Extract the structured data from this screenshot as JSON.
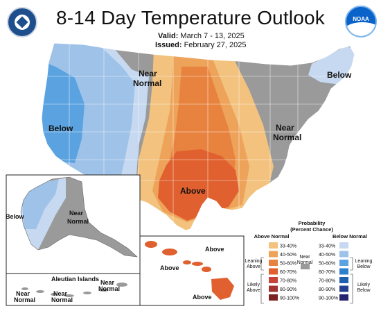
{
  "title": "8-14 Day Temperature Outlook",
  "valid": {
    "label": "Valid:",
    "value": "March 7 - 13, 2025"
  },
  "issued": {
    "label": "Issued:",
    "value": "February 27, 2025"
  },
  "logos": {
    "left": "doc-seal",
    "right": "noaa-logo"
  },
  "colors": {
    "below_33_40": "#c6d9f1",
    "below_40_50": "#9ec2e8",
    "below_50_60": "#5ba3e0",
    "near_normal": "#9a9a9a",
    "above_33_40": "#f2c27e",
    "above_40_50": "#eea35a",
    "above_50_60": "#e8833f",
    "above_60_70": "#e0602f"
  },
  "map_labels": {
    "conus_west": "Below",
    "conus_nw_near": "Near\nNormal",
    "conus_ne": "Below",
    "conus_east_near": "Near\nNormal",
    "conus_south": "Above",
    "alaska_west": "Below",
    "alaska_near": "Near\nNormal",
    "aleutian_title": "Aleutian Islands",
    "aleutian_near_1": "Near\nNormal",
    "aleutian_near_2": "Near\nNormal",
    "aleutian_near_3": "Near\nNormal",
    "hawaii_1": "Above",
    "hawaii_2": "Above",
    "hawaii_3": "Above"
  },
  "legend": {
    "title": "Probability",
    "subtitle": "(Percent Chance)",
    "above_header": "Above Normal",
    "below_header": "Below Normal",
    "near_header": "Near\nNormal",
    "above_ranges": [
      "33-40%",
      "40-50%",
      "50-60%",
      "60-70%",
      "70-80%",
      "80-90%",
      "90-100%"
    ],
    "below_ranges": [
      "33-40%",
      "40-50%",
      "50-60%",
      "60-70%",
      "70-80%",
      "80-90%",
      "90-100%"
    ],
    "above_colors": [
      "#f2c27e",
      "#eea35a",
      "#e8833f",
      "#e0602f",
      "#c7443a",
      "#a33332",
      "#7c2424"
    ],
    "below_colors": [
      "#c6d9f1",
      "#9ec2e8",
      "#5ba3e0",
      "#2f7fcf",
      "#1f5fae",
      "#253f8f",
      "#26236f"
    ],
    "near_color": "#9a9a9a",
    "leaning_above": "Leaning\nAbove",
    "likely_above": "Likely\nAbove",
    "leaning_below": "Leaning\nBelow",
    "likely_below": "Likely\nBelow"
  }
}
